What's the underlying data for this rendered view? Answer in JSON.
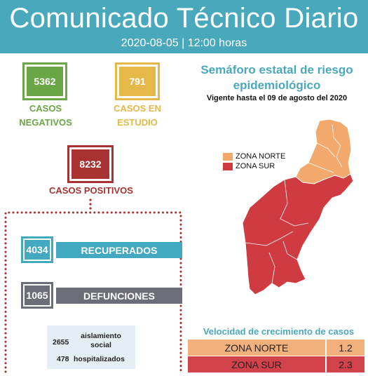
{
  "header": {
    "title": "Comunicado Técnico Diario",
    "subtitle": "2020-08-05 | 12:00 horas"
  },
  "casos": {
    "negativos": {
      "value": "5362",
      "label": "CASOS NEGATIVOS"
    },
    "estudio": {
      "value": "791",
      "label": "CASOS EN ESTUDIO"
    },
    "positivos": {
      "value": "8232",
      "label": "CASOS POSITIVOS"
    }
  },
  "desglose": {
    "recuperados": {
      "value": "4034",
      "label": "RECUPERADOS"
    },
    "defunciones": {
      "value": "1065",
      "label": "DEFUNCIONES"
    },
    "aislamiento": {
      "value": "2655",
      "label": "aislamiento social"
    },
    "hospitalizados": {
      "value": "478",
      "label": "hospitalizados"
    }
  },
  "semaforo": {
    "title": "Semáforo estatal de riesgo epidemiológico",
    "vigencia": "Vigente hasta el 09 de agosto del 2020",
    "legend": [
      {
        "label": "ZONA NORTE",
        "color": "#f2a96b"
      },
      {
        "label": "ZONA SUR",
        "color": "#cf3b41"
      }
    ]
  },
  "velocidad": {
    "title": "Velocidad de crecimiento de casos",
    "rows": [
      {
        "zona": "ZONA NORTE",
        "valor": "1.2"
      },
      {
        "zona": "ZONA SUR",
        "valor": "2.3"
      }
    ]
  },
  "colors": {
    "header": "#4aa8bc",
    "negativos": "#6aa646",
    "estudio": "#e5b84a",
    "positivos": "#a83232",
    "recuperados": "#42a9c0",
    "defunciones": "#6b6e78"
  }
}
